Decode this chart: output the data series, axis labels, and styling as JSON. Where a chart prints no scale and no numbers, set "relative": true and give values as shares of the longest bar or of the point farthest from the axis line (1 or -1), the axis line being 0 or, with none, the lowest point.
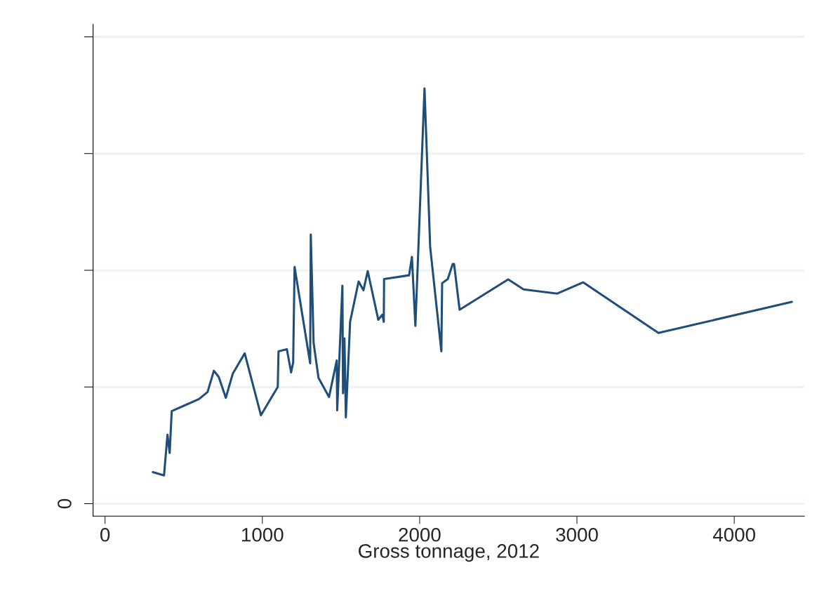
{
  "chart_data": {
    "type": "line",
    "xlabel": "Gross tonnage, 2012",
    "relative": true,
    "x": [
      304,
      375,
      397,
      411,
      424,
      598,
      652,
      692,
      723,
      768,
      812,
      888,
      991,
      1098,
      1103,
      1156,
      1183,
      1196,
      1205,
      1304,
      1308,
      1326,
      1357,
      1424,
      1473,
      1476,
      1509,
      1513,
      1522,
      1531,
      1558,
      1612,
      1643,
      1670,
      1737,
      1763,
      1772,
      1774,
      1933,
      1951,
      1973,
      2031,
      2067,
      2138,
      2143,
      2179,
      2210,
      2219,
      2254,
      2563,
      2661,
      2875,
      3040,
      3518,
      4366
    ],
    "series": [
      {
        "color": "#1f4e79",
        "values": [
          0.076,
          0.068,
          0.166,
          0.122,
          0.223,
          0.252,
          0.269,
          0.32,
          0.305,
          0.255,
          0.313,
          0.362,
          0.213,
          0.281,
          0.367,
          0.372,
          0.316,
          0.34,
          0.57,
          0.338,
          0.648,
          0.387,
          0.303,
          0.257,
          0.345,
          0.225,
          0.525,
          0.266,
          0.398,
          0.208,
          0.438,
          0.535,
          0.514,
          0.56,
          0.443,
          0.455,
          0.438,
          0.541,
          0.55,
          0.594,
          0.428,
          1.0,
          0.618,
          0.367,
          0.531,
          0.541,
          0.577,
          0.577,
          0.467,
          0.54,
          0.516,
          0.506,
          0.533,
          0.411,
          0.486
        ]
      }
    ],
    "xlim": [
      -76,
      4446
    ],
    "xticks": [
      0,
      1000,
      2000,
      3000,
      4000
    ],
    "ref_lines": [
      {
        "axis": "y",
        "value": 0,
        "label": "0",
        "color": "#eaf2f3"
      },
      {
        "axis": "y",
        "value": 0.281,
        "color": "#eaf2f3"
      },
      {
        "axis": "y",
        "value": 0.562,
        "color": "#eaf2f3"
      },
      {
        "axis": "y",
        "value": 0.843,
        "color": "#eaf2f3"
      },
      {
        "axis": "y",
        "value": 1.124,
        "color": "#eaf2f3"
      }
    ],
    "marker": "none",
    "line_style": "solid",
    "legend": false
  }
}
